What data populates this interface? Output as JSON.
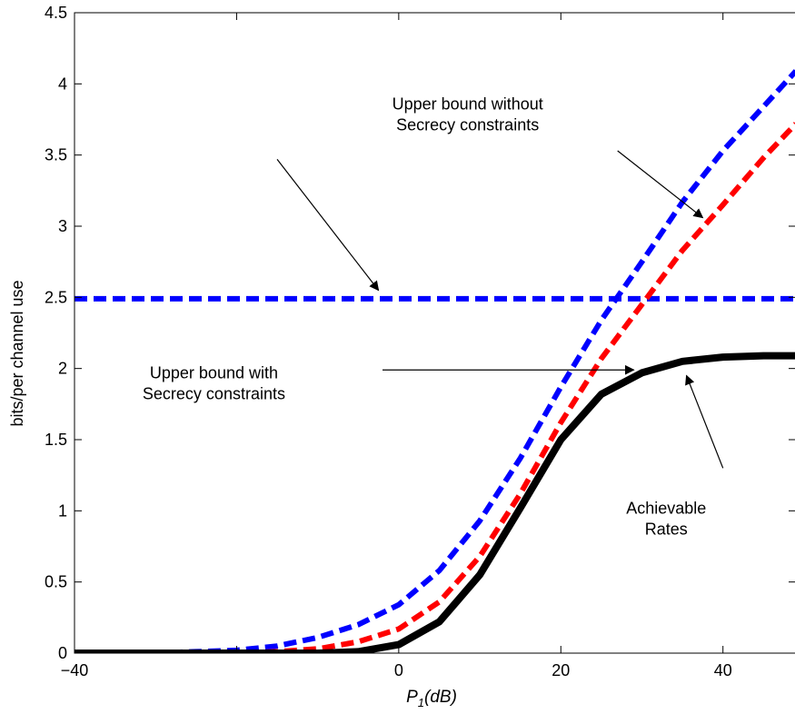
{
  "chart_data": {
    "type": "line",
    "title": "",
    "xlabel": {
      "main": "P",
      "sub": "1",
      "rest": "(dB)"
    },
    "ylabel": "bits/per channel use",
    "xlim": [
      -40,
      49
    ],
    "ylim": [
      0,
      4.5
    ],
    "xticks": [
      -40,
      -20,
      0,
      20,
      40
    ],
    "xtick_labels": [
      "−40",
      "",
      "0",
      "20",
      "40"
    ],
    "yticks": [
      0,
      0.5,
      1,
      1.5,
      2,
      2.5,
      3,
      3.5,
      4,
      4.5
    ],
    "ytick_labels": [
      "0",
      "0.5",
      "1",
      "1.5",
      "2",
      "2.5",
      "3",
      "3.5",
      "4",
      "4.5"
    ],
    "grid": false,
    "series": [
      {
        "color": "#0000ff",
        "style": "dashed",
        "x": [
          -40,
          49
        ],
        "y": [
          2.49,
          2.49
        ]
      },
      {
        "color": "#0000ff",
        "style": "dashed",
        "x": [
          -40,
          -35,
          -30,
          -25,
          -20,
          -15,
          -10,
          -5,
          0,
          5,
          10,
          15,
          20,
          25,
          30,
          35,
          40,
          45,
          49
        ],
        "y": [
          0.0,
          0.0,
          0.0,
          0.01,
          0.02,
          0.05,
          0.11,
          0.2,
          0.34,
          0.58,
          0.93,
          1.37,
          1.87,
          2.34,
          2.75,
          3.17,
          3.53,
          3.84,
          4.09
        ]
      },
      {
        "color": "#ff0000",
        "style": "dashed",
        "x": [
          -40,
          -35,
          -30,
          -25,
          -20,
          -15,
          -10,
          -5,
          0,
          5,
          10,
          15,
          20,
          25,
          30,
          35,
          40,
          45,
          49
        ],
        "y": [
          0.0,
          0.0,
          0.0,
          0.0,
          0.0,
          0.01,
          0.03,
          0.08,
          0.17,
          0.36,
          0.68,
          1.12,
          1.62,
          2.07,
          2.45,
          2.83,
          3.15,
          3.48,
          3.72
        ]
      },
      {
        "color": "#000000",
        "style": "solid",
        "x": [
          -40,
          -30,
          -20,
          -10,
          -5,
          0,
          5,
          10,
          15,
          20,
          25,
          30,
          35,
          40,
          45,
          49
        ],
        "y": [
          0.0,
          0.0,
          0.0,
          0.0,
          0.01,
          0.06,
          0.22,
          0.55,
          1.02,
          1.5,
          1.82,
          1.97,
          2.05,
          2.08,
          2.09,
          2.09
        ]
      }
    ],
    "annotations": [
      {
        "lines": [
          "Upper bound without",
          "Secrecy constraints"
        ],
        "text_at": [
          8.5,
          3.82
        ],
        "arrows": [
          {
            "from": [
              -15,
              3.47
            ],
            "to": [
              -2.5,
              2.55
            ]
          },
          {
            "from": [
              27,
              3.53
            ],
            "to": [
              37.5,
              3.06
            ]
          }
        ]
      },
      {
        "lines": [
          "Upper bound with",
          "Secrecy constraints"
        ],
        "text_at": [
          -22.8,
          1.93
        ],
        "arrows": [
          {
            "from": [
              -2,
              1.99
            ],
            "to": [
              29,
              1.99
            ]
          }
        ]
      },
      {
        "lines": [
          "Achievable",
          "Rates"
        ],
        "text_at": [
          33,
          0.98
        ],
        "arrows": [
          {
            "from": [
              40,
              1.3
            ],
            "to": [
              35.5,
              1.95
            ]
          }
        ]
      }
    ]
  }
}
